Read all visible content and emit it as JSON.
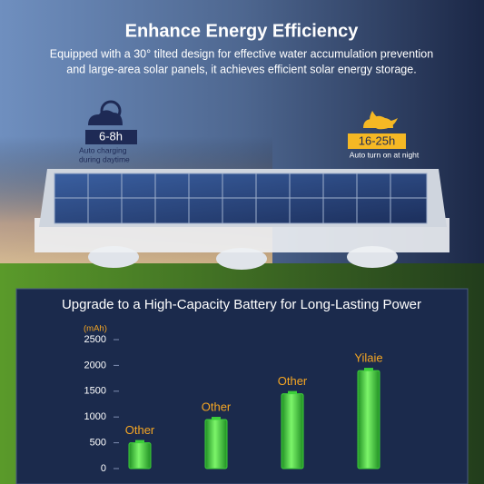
{
  "header": {
    "title": "Enhance Energy Efficiency",
    "subtitle": [
      "Equipped with a 30° tilted design for effective water accumulation prevention",
      "and large-area solar panels, it achieves efficient solar energy storage."
    ]
  },
  "badges": [
    {
      "time": "6-8h",
      "caption": [
        "Auto charging",
        "during daytime"
      ]
    },
    {
      "time": "16-25h",
      "caption": [
        "Auto turn on at night"
      ]
    }
  ],
  "chart_data": {
    "type": "bar",
    "title": "Upgrade to a High-Capacity Battery for Long-Lasting Power",
    "ylabel": "(mAh)",
    "categories": [
      "Other",
      "Other",
      "Other",
      "Yilaie"
    ],
    "values": [
      500,
      950,
      1450,
      1900
    ],
    "color": "#3ccf3a",
    "label_color": "#f5a623",
    "ylim": [
      0,
      2500
    ],
    "yticks": [
      0,
      500,
      1000,
      1500,
      2000,
      2500
    ]
  }
}
